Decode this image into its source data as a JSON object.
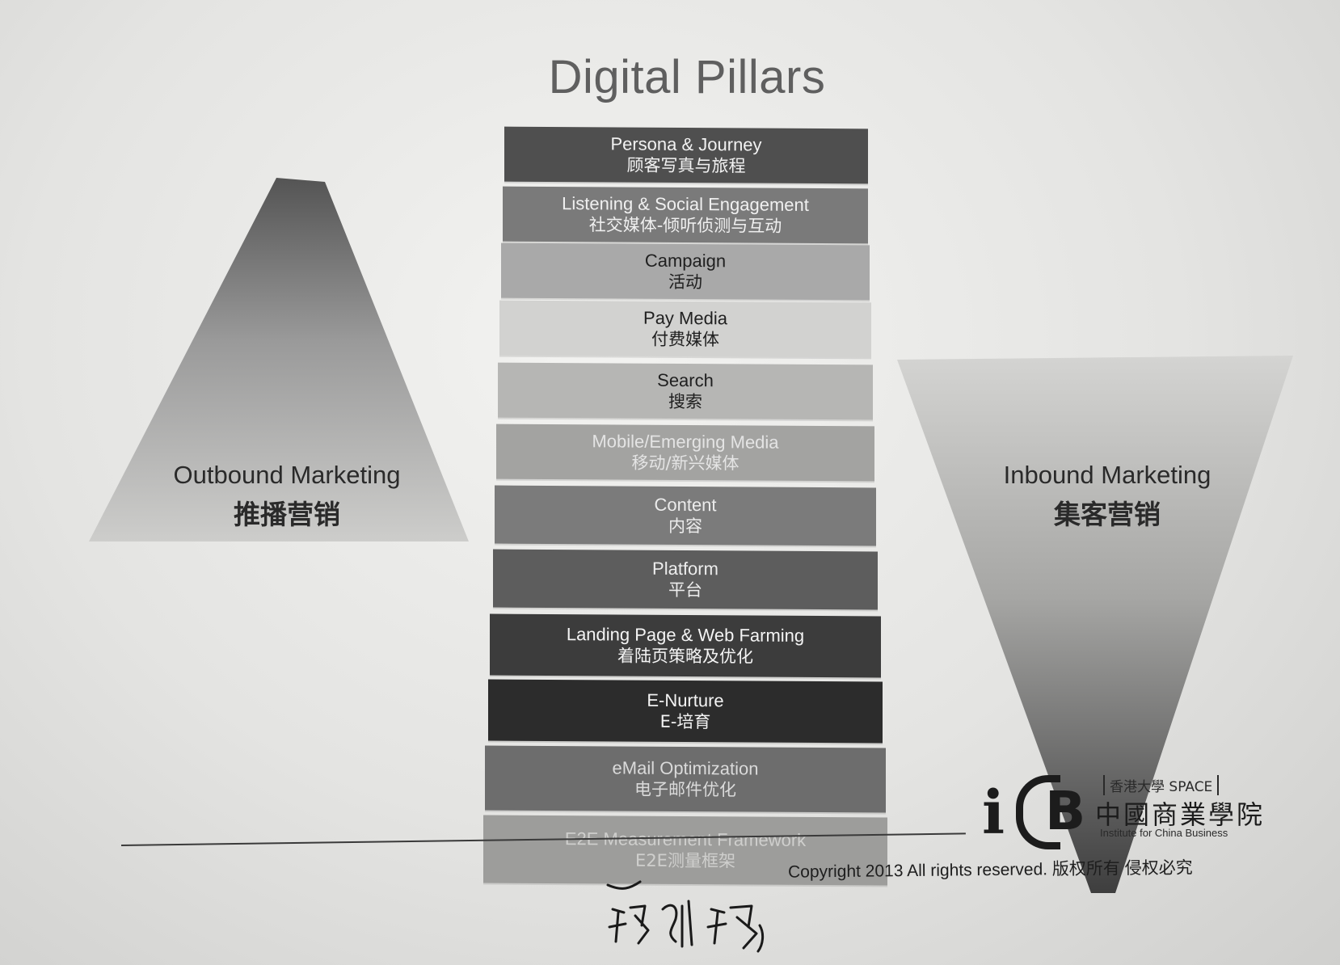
{
  "title": "Digital Pillars",
  "outbound": {
    "en": "Outbound Marketing",
    "zh": "推播营销"
  },
  "inbound": {
    "en": "Inbound Marketing",
    "zh": "集客营销"
  },
  "pillars": [
    {
      "en": "Persona & Journey",
      "zh": "顾客写真与旅程",
      "color": "#4f4f4f",
      "text_color": "#f2f2f2"
    },
    {
      "en": "Listening  & Social Engagement",
      "zh": "社交媒体-倾听侦测与互动",
      "color": "#7a7a7a",
      "text_color": "#f0f0f0"
    },
    {
      "en": "Campaign",
      "zh": "活动",
      "color": "#a9a9a9",
      "text_color": "#202020"
    },
    {
      "en": "Pay Media",
      "zh": "付费媒体",
      "color": "#d2d2d0",
      "text_color": "#202020"
    },
    {
      "en": "Search",
      "zh": "搜索",
      "color": "#b6b6b4",
      "text_color": "#202020"
    },
    {
      "en": "Mobile/Emerging Media",
      "zh": "移动/新兴媒体",
      "color": "#a3a3a1",
      "text_color": "#e4e4e4"
    },
    {
      "en": "Content",
      "zh": "内容",
      "color": "#7b7b7b",
      "text_color": "#ececec"
    },
    {
      "en": "Platform",
      "zh": "平台",
      "color": "#5d5d5d",
      "text_color": "#eeeeee"
    },
    {
      "en": "Landing Page & Web Farming",
      "zh": "着陆页策略及优化",
      "color": "#3c3c3c",
      "text_color": "#f4f4f4"
    },
    {
      "en": "E-Nurture",
      "zh": "E-培育",
      "color": "#2c2c2c",
      "text_color": "#f4f4f4"
    },
    {
      "en": "eMail Optimization",
      "zh": "电子邮件优化",
      "color": "#6d6d6d",
      "text_color": "#dadada"
    },
    {
      "en": "E2E Measurement Framework",
      "zh": "E2E测量框架",
      "color": "#9d9d9b",
      "text_color": "#cfcfcd"
    }
  ],
  "logo": {
    "letters_i": "i",
    "letters_b": "B",
    "top_line": "香港大學 SPACE",
    "chinese_name": "中國商業學院",
    "english_name": "Institute for China Business"
  },
  "copyright": "Copyright 2013 All rights reserved. 版权所有 侵权必究"
}
